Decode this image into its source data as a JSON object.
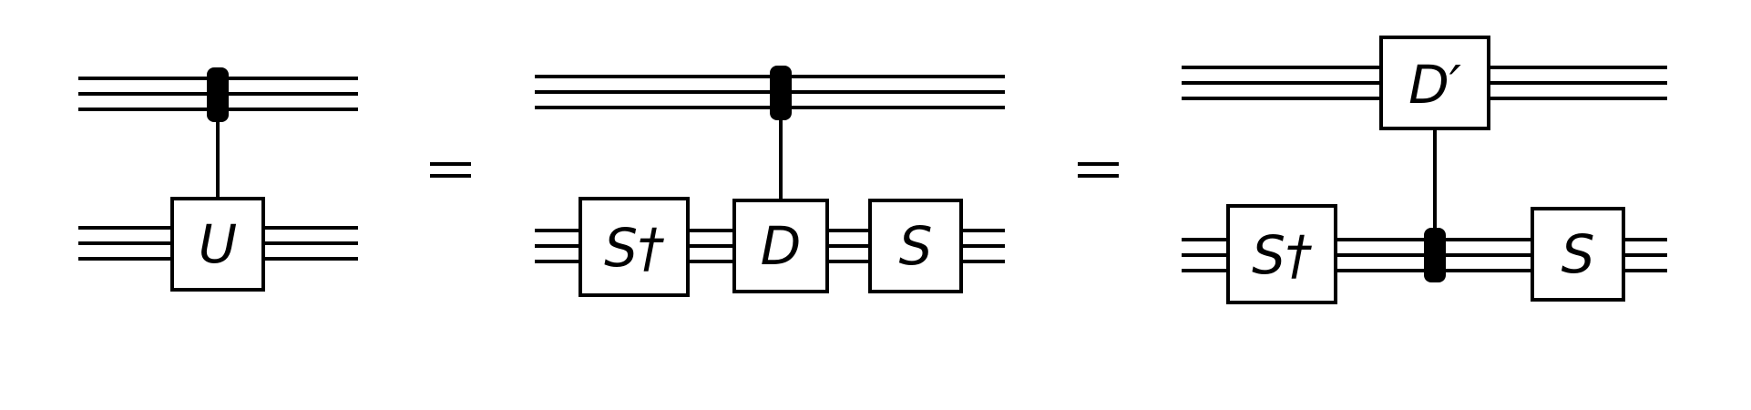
{
  "diagram": {
    "left_gate": "U",
    "middle": {
      "gate_s_dagger": "S†",
      "gate_d": "D",
      "gate_s": "S"
    },
    "right": {
      "gate_d_prime": "D′",
      "gate_s_dagger": "S†",
      "gate_s": "S"
    }
  }
}
